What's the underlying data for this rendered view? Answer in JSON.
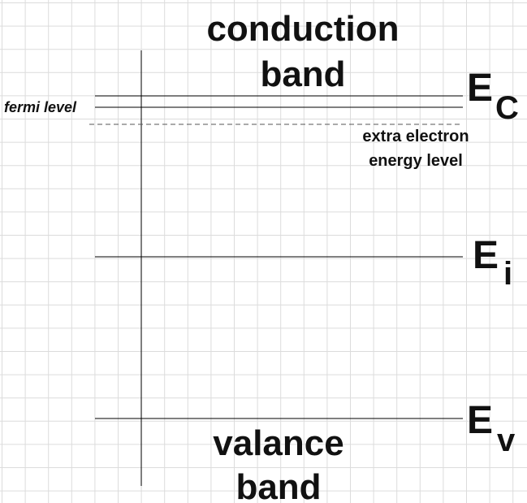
{
  "labels": {
    "conduction_1": "conduction",
    "conduction_2": "band",
    "valance_1": "valance",
    "valance_2": "band",
    "fermi": "fermi level",
    "extra_1": "extra electron",
    "extra_2": "energy level",
    "ec_main": "E",
    "ec_sub": "C",
    "ei_main": "E",
    "ei_sub": "i",
    "ev_main": "E",
    "ev_sub": "v"
  },
  "colors": {
    "grid": "#dcdcdc",
    "line": "#000000",
    "text": "#111111"
  }
}
